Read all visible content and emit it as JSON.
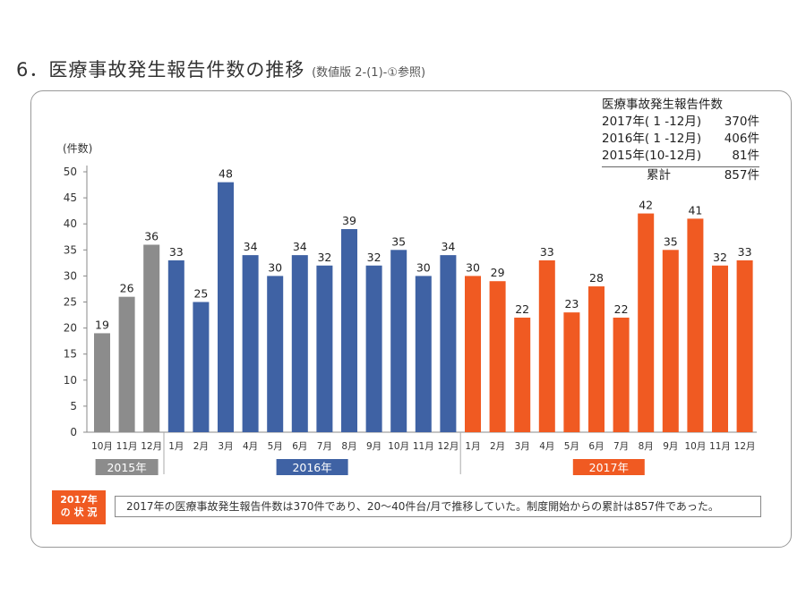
{
  "header": {
    "title": "6．医療事故発生報告件数の推移",
    "subtitle": "(数値版 2-(1)-①参照)"
  },
  "summary": {
    "heading": "医療事故発生報告件数",
    "rows": [
      {
        "label": "2017年( 1 -12月)",
        "value": "370件"
      },
      {
        "label": "2016年( 1 -12月)",
        "value": "406件"
      },
      {
        "label": "2015年(10-12月)",
        "value": "81件"
      }
    ],
    "total_label": "累計",
    "total_value": "857件"
  },
  "note": {
    "tag_line1": "2017年",
    "tag_line2": "の 状 況",
    "text": "2017年の医療事故発生報告件数は370件であり、20～40件台/月で推移していた。制度開始からの累計は857件であった。"
  },
  "chart_data": {
    "type": "bar",
    "ylabel": "(件数)",
    "ylim": [
      0,
      50
    ],
    "yticks": [
      0,
      5,
      10,
      15,
      20,
      25,
      30,
      35,
      40,
      45,
      50
    ],
    "grid": false,
    "groups": [
      {
        "name": "2015年",
        "color": "#8c8c8c",
        "categories": [
          "10月",
          "11月",
          "12月"
        ],
        "values": [
          19,
          26,
          36
        ]
      },
      {
        "name": "2016年",
        "color": "#3f62a4",
        "categories": [
          "1月",
          "2月",
          "3月",
          "4月",
          "5月",
          "6月",
          "7月",
          "8月",
          "9月",
          "10月",
          "11月",
          "12月"
        ],
        "values": [
          33,
          25,
          48,
          34,
          30,
          34,
          32,
          39,
          32,
          35,
          30,
          34
        ]
      },
      {
        "name": "2017年",
        "color": "#f05a22",
        "categories": [
          "1月",
          "2月",
          "3月",
          "4月",
          "5月",
          "6月",
          "7月",
          "8月",
          "9月",
          "10月",
          "11月",
          "12月"
        ],
        "values": [
          30,
          29,
          22,
          33,
          23,
          28,
          22,
          42,
          35,
          41,
          32,
          33
        ]
      }
    ]
  }
}
